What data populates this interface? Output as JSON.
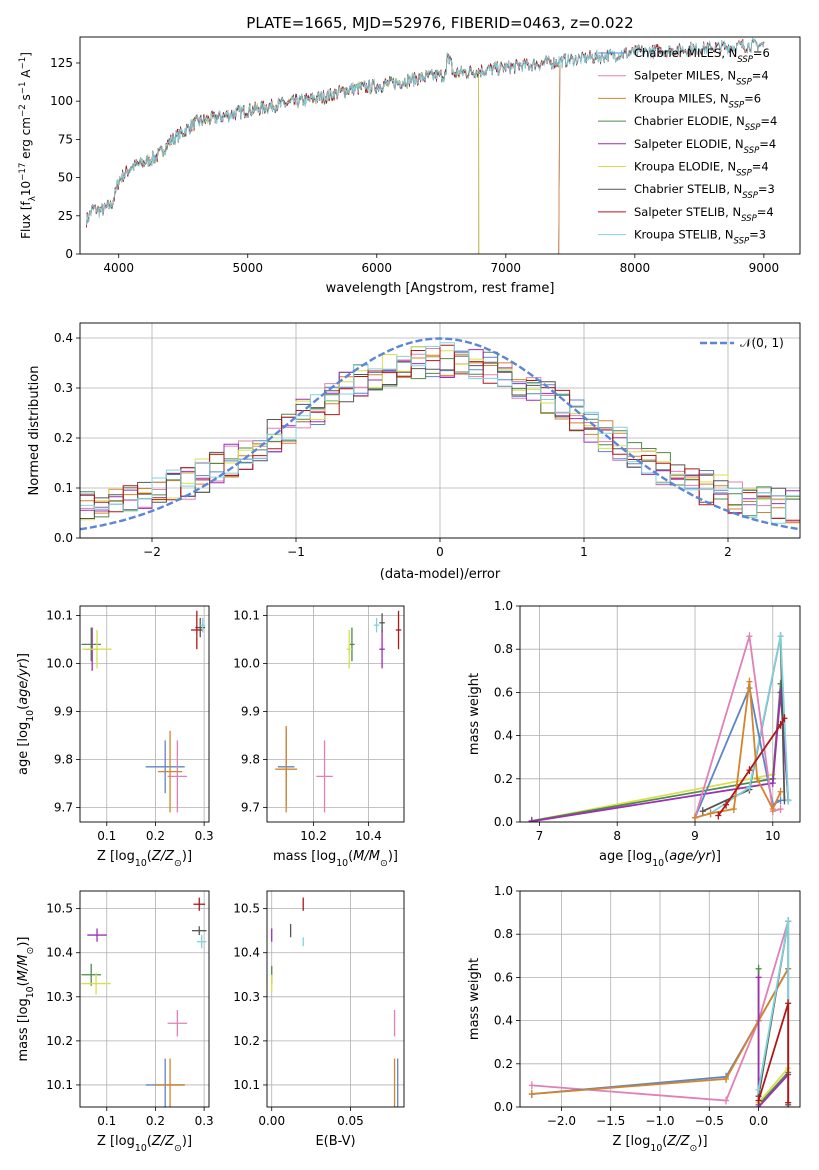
{
  "figure": {
    "title": "PLATE=1665, MJD=52976, FIBERID=0463, z=0.022"
  },
  "colors": {
    "Chabrier MILES": "#5b86c8",
    "Salpeter MILES": "#e080b6",
    "Kroupa MILES": "#d4842c",
    "Chabrier ELODIE": "#4d8a4d",
    "Salpeter ELODIE": "#9b2fb5",
    "Kroupa ELODIE": "#d7e04a",
    "Chabrier STELIB": "#555555",
    "Salpeter STELIB": "#b01818",
    "Kroupa STELIB": "#82d2dc",
    "gaussian": "#5b86d8",
    "grid": "#b0b0b0"
  },
  "chart_data": [
    {
      "id": "spectrum",
      "type": "line",
      "xlabel": "wavelength [Angstrom, rest frame]",
      "ylabel": "Flux [f_λ 10^{-17} erg cm^{-2} s^{-1} A^{-1}]",
      "xlim": [
        3700,
        9280
      ],
      "ylim": [
        0,
        142
      ],
      "xticks": [
        "4000",
        "5000",
        "6000",
        "7000",
        "8000",
        "9000"
      ],
      "yticks": [
        "0",
        "25",
        "50",
        "75",
        "100",
        "125"
      ],
      "grid": false,
      "legend_position": "top-right",
      "series": [
        {
          "name": "Chabrier MILES, N_SSP=6",
          "legend_main": "Chabrier MILES, N",
          "legend_sub": "SSP",
          "legend_tail": "=6",
          "color_key": "Chabrier MILES",
          "range": [
            3750,
            7420
          ],
          "drop_at": 7410
        },
        {
          "name": "Salpeter MILES, N_SSP=4",
          "legend_main": "Salpeter MILES, N",
          "legend_sub": "SSP",
          "legend_tail": "=4",
          "color_key": "Salpeter MILES",
          "range": [
            3750,
            7420
          ],
          "drop_at": 7410
        },
        {
          "name": "Kroupa MILES, N_SSP=6",
          "legend_main": "Kroupa MILES, N",
          "legend_sub": "SSP",
          "legend_tail": "=6",
          "color_key": "Kroupa MILES",
          "range": [
            3750,
            7420
          ],
          "drop_at": 7410
        },
        {
          "name": "Chabrier ELODIE, N_SSP=4",
          "legend_main": "Chabrier ELODIE, N",
          "legend_sub": "SSP",
          "legend_tail": "=4",
          "color_key": "Chabrier ELODIE",
          "range": [
            3900,
            6790
          ],
          "drop_at": 6790
        },
        {
          "name": "Salpeter ELODIE, N_SSP=4",
          "legend_main": "Salpeter ELODIE, N",
          "legend_sub": "SSP",
          "legend_tail": "=4",
          "color_key": "Salpeter ELODIE",
          "range": [
            3900,
            6790
          ],
          "drop_at": 6790
        },
        {
          "name": "Kroupa ELODIE, N_SSP=4",
          "legend_main": "Kroupa ELODIE, N",
          "legend_sub": "SSP",
          "legend_tail": "=4",
          "color_key": "Kroupa ELODIE",
          "range": [
            3900,
            6790
          ],
          "drop_at": 6790
        },
        {
          "name": "Chabrier STELIB, N_SSP=3",
          "legend_main": "Chabrier STELIB, N",
          "legend_sub": "SSP",
          "legend_tail": "=3",
          "color_key": "Chabrier STELIB",
          "range": [
            3750,
            9000
          ]
        },
        {
          "name": "Salpeter STELIB, N_SSP=4",
          "legend_main": "Salpeter STELIB, N",
          "legend_sub": "SSP",
          "legend_tail": "=4",
          "color_key": "Salpeter STELIB",
          "range": [
            3750,
            9000
          ]
        },
        {
          "name": "Kroupa STELIB, N_SSP=3",
          "legend_main": "Kroupa STELIB, N",
          "legend_sub": "SSP",
          "legend_tail": "=3",
          "color_key": "Kroupa STELIB",
          "range": [
            3750,
            9000
          ]
        }
      ],
      "continuum_x": [
        3750,
        3800,
        3850,
        3900,
        3950,
        4000,
        4100,
        4200,
        4300,
        4400,
        4500,
        4600,
        4800,
        5000,
        5200,
        5400,
        5600,
        5800,
        6000,
        6200,
        6400,
        6600,
        6800,
        7000,
        7200,
        7400,
        7600,
        7800,
        8000,
        8200,
        8400,
        8600,
        8800,
        9000
      ],
      "continuum_y": [
        22,
        30,
        28,
        30,
        33,
        48,
        57,
        60,
        64,
        74,
        80,
        86,
        90,
        94,
        97,
        100,
        103,
        108,
        110,
        113,
        116,
        118,
        120,
        122,
        124,
        126,
        128,
        130,
        132,
        133,
        134,
        135,
        136,
        137
      ]
    },
    {
      "id": "residual-histogram",
      "type": "bar",
      "xlabel": "(data-model)/error",
      "ylabel": "Normed distribution",
      "xlim": [
        -2.5,
        2.5
      ],
      "ylim": [
        0,
        0.43
      ],
      "xticks": [
        "−2",
        "−1",
        "0",
        "1",
        "2"
      ],
      "yticks": [
        "0.0",
        "0.1",
        "0.2",
        "0.3",
        "0.4"
      ],
      "grid": true,
      "legend_position": "top-right",
      "legend_label": "𝒩(0, 1)",
      "bin_width": 0.1,
      "gaussian": {
        "mu": 0,
        "sigma": 1
      }
    },
    {
      "id": "age-vs-Z",
      "type": "scatter",
      "xlabel": "Z [log10(Z/Z⊙)]",
      "ylabel": "age [log10(age/yr)]",
      "xlim": [
        0.045,
        0.31
      ],
      "ylim": [
        9.67,
        10.12
      ],
      "xticks": [
        "0.1",
        "0.2",
        "0.3"
      ],
      "yticks": [
        "9.7",
        "9.8",
        "9.9",
        "10.0",
        "10.1"
      ],
      "grid": true,
      "points": [
        {
          "key": "Chabrier MILES",
          "x": 0.22,
          "y": 9.785,
          "xerr": 0.04,
          "yerr": 0.055
        },
        {
          "key": "Salpeter MILES",
          "x": 0.245,
          "y": 9.765,
          "xerr": 0.02,
          "yerr": 0.075
        },
        {
          "key": "Kroupa MILES",
          "x": 0.23,
          "y": 9.775,
          "xerr": 0.025,
          "yerr": 0.085
        },
        {
          "key": "Chabrier ELODIE",
          "x": 0.068,
          "y": 10.04,
          "xerr": 0.02,
          "yerr": 0.035
        },
        {
          "key": "Salpeter ELODIE",
          "x": 0.07,
          "y": 10.03,
          "xerr": 0.012,
          "yerr": 0.045
        },
        {
          "key": "Kroupa ELODIE",
          "x": 0.08,
          "y": 10.03,
          "xerr": 0.03,
          "yerr": 0.04
        },
        {
          "key": "Chabrier STELIB",
          "x": 0.292,
          "y": 10.075,
          "xerr": 0.01,
          "yerr": 0.02
        },
        {
          "key": "Salpeter STELIB",
          "x": 0.285,
          "y": 10.07,
          "xerr": 0.012,
          "yerr": 0.04
        },
        {
          "key": "Kroupa STELIB",
          "x": 0.297,
          "y": 10.08,
          "xerr": 0.005,
          "yerr": 0.015
        }
      ]
    },
    {
      "id": "age-vs-mass",
      "type": "scatter",
      "xlabel": "mass [log10(M/M⊙)]",
      "ylabel": "",
      "xlim": [
        10.03,
        10.53
      ],
      "ylim": [
        9.67,
        10.12
      ],
      "xticks": [
        "10.2",
        "10.4"
      ],
      "yticks": [
        "9.7",
        "9.8",
        "9.9",
        "10.0",
        "10.1"
      ],
      "grid": true,
      "points": [
        {
          "key": "Chabrier MILES",
          "x": 10.1,
          "y": 9.785,
          "xerr": 0.03,
          "yerr": 0.08
        },
        {
          "key": "Salpeter MILES",
          "x": 10.24,
          "y": 9.765,
          "xerr": 0.03,
          "yerr": 0.075
        },
        {
          "key": "Kroupa MILES",
          "x": 10.1,
          "y": 9.78,
          "xerr": 0.04,
          "yerr": 0.09
        },
        {
          "key": "Chabrier ELODIE",
          "x": 10.34,
          "y": 10.04,
          "xerr": 0.01,
          "yerr": 0.035
        },
        {
          "key": "Salpeter ELODIE",
          "x": 10.45,
          "y": 10.03,
          "xerr": 0.01,
          "yerr": 0.04
        },
        {
          "key": "Kroupa ELODIE",
          "x": 10.33,
          "y": 10.03,
          "xerr": 0.01,
          "yerr": 0.04
        },
        {
          "key": "Chabrier STELIB",
          "x": 10.45,
          "y": 10.085,
          "xerr": 0.01,
          "yerr": 0.02
        },
        {
          "key": "Salpeter STELIB",
          "x": 10.51,
          "y": 10.07,
          "xerr": 0.01,
          "yerr": 0.04
        },
        {
          "key": "Kroupa STELIB",
          "x": 10.43,
          "y": 10.08,
          "xerr": 0.01,
          "yerr": 0.015
        }
      ]
    },
    {
      "id": "weight-vs-age",
      "type": "line",
      "xlabel": "age [log10(age/yr)]",
      "ylabel": "mass weight",
      "xlim": [
        6.75,
        10.35
      ],
      "ylim": [
        0,
        1.0
      ],
      "xticks": [
        "7",
        "8",
        "9",
        "10"
      ],
      "yticks": [
        "0.0",
        "0.2",
        "0.4",
        "0.6",
        "0.8",
        "1.0"
      ],
      "grid": true,
      "series": [
        {
          "key": "Kroupa ELODIE",
          "x": [
            6.9,
            10.0,
            10.1,
            10.2
          ],
          "y": [
            0.005,
            0.22,
            0.6,
            0.1
          ]
        },
        {
          "key": "Chabrier ELODIE",
          "x": [
            6.9,
            10.0,
            10.1,
            10.2
          ],
          "y": [
            0.005,
            0.2,
            0.64,
            0.1
          ]
        },
        {
          "key": "Salpeter ELODIE",
          "x": [
            6.9,
            10.0,
            10.1,
            10.2
          ],
          "y": [
            0.003,
            0.18,
            0.6,
            0.1
          ]
        },
        {
          "key": "Chabrier STELIB",
          "x": [
            9.1,
            9.7,
            10.1,
            10.15
          ],
          "y": [
            0.05,
            0.15,
            0.86,
            0.1
          ]
        },
        {
          "key": "Kroupa STELIB",
          "x": [
            9.2,
            9.7,
            10.1,
            10.2
          ],
          "y": [
            0.04,
            0.16,
            0.86,
            0.1
          ]
        },
        {
          "key": "Chabrier MILES",
          "x": [
            9.0,
            9.7,
            10.0,
            10.1
          ],
          "y": [
            0.02,
            0.62,
            0.08,
            0.1
          ]
        },
        {
          "key": "Salpeter MILES",
          "x": [
            9.0,
            9.7,
            10.0,
            10.1
          ],
          "y": [
            0.02,
            0.86,
            0.05,
            0.06
          ]
        },
        {
          "key": "Kroupa MILES",
          "x": [
            9.0,
            9.2,
            9.5,
            9.7,
            9.8,
            10.0,
            10.1
          ],
          "y": [
            0.02,
            0.04,
            0.06,
            0.65,
            0.2,
            0.06,
            0.14
          ]
        },
        {
          "key": "Salpeter STELIB",
          "x": [
            9.3,
            9.4,
            9.7,
            10.1,
            10.15
          ],
          "y": [
            0.03,
            0.08,
            0.24,
            0.45,
            0.48
          ]
        }
      ]
    },
    {
      "id": "mass-vs-Z",
      "type": "scatter",
      "xlabel": "Z [log10(Z/Z⊙)]",
      "ylabel": "mass [log10(M/M⊙)]",
      "xlim": [
        0.045,
        0.31
      ],
      "ylim": [
        10.05,
        10.54
      ],
      "xticks": [
        "0.1",
        "0.2",
        "0.3"
      ],
      "yticks": [
        "10.1",
        "10.2",
        "10.3",
        "10.4",
        "10.5"
      ],
      "grid": true,
      "points": [
        {
          "key": "Chabrier MILES",
          "x": 0.22,
          "y": 10.1,
          "xerr": 0.04,
          "yerr": 0.06
        },
        {
          "key": "Salpeter MILES",
          "x": 0.245,
          "y": 10.24,
          "xerr": 0.02,
          "yerr": 0.03
        },
        {
          "key": "Kroupa MILES",
          "x": 0.23,
          "y": 10.1,
          "xerr": 0.03,
          "yerr": 0.06
        },
        {
          "key": "Chabrier ELODIE",
          "x": 0.068,
          "y": 10.35,
          "xerr": 0.02,
          "yerr": 0.025
        },
        {
          "key": "Salpeter ELODIE",
          "x": 0.08,
          "y": 10.44,
          "xerr": 0.02,
          "yerr": 0.015
        },
        {
          "key": "Kroupa ELODIE",
          "x": 0.078,
          "y": 10.33,
          "xerr": 0.03,
          "yerr": 0.025
        },
        {
          "key": "Chabrier STELIB",
          "x": 0.29,
          "y": 10.45,
          "xerr": 0.015,
          "yerr": 0.01
        },
        {
          "key": "Salpeter STELIB",
          "x": 0.29,
          "y": 10.51,
          "xerr": 0.012,
          "yerr": 0.015
        },
        {
          "key": "Kroupa STELIB",
          "x": 0.295,
          "y": 10.425,
          "xerr": 0.01,
          "yerr": 0.015
        }
      ]
    },
    {
      "id": "mass-vs-ebv",
      "type": "scatter",
      "xlabel": "E(B-V)",
      "ylabel": "",
      "xlim": [
        -0.003,
        0.084
      ],
      "ylim": [
        10.05,
        10.54
      ],
      "xticks": [
        "0.00",
        "0.05"
      ],
      "yticks": [
        "10.1",
        "10.2",
        "10.3",
        "10.4",
        "10.5"
      ],
      "grid": true,
      "points": [
        {
          "key": "Chabrier MILES",
          "x": 0.08,
          "y": 10.1,
          "xerr": 0,
          "yerr": 0.06
        },
        {
          "key": "Salpeter MILES",
          "x": 0.078,
          "y": 10.24,
          "xerr": 0,
          "yerr": 0.03
        },
        {
          "key": "Kroupa MILES",
          "x": 0.078,
          "y": 10.1,
          "xerr": 0,
          "yerr": 0.06
        },
        {
          "key": "Chabrier ELODIE",
          "x": 0.0,
          "y": 10.35,
          "xerr": 0,
          "yerr": 0.02
        },
        {
          "key": "Salpeter ELODIE",
          "x": 0.0,
          "y": 10.44,
          "xerr": 0,
          "yerr": 0.015
        },
        {
          "key": "Kroupa ELODIE",
          "x": 0.0,
          "y": 10.33,
          "xerr": 0,
          "yerr": 0.02
        },
        {
          "key": "Chabrier STELIB",
          "x": 0.012,
          "y": 10.45,
          "xerr": 0,
          "yerr": 0.015
        },
        {
          "key": "Salpeter STELIB",
          "x": 0.02,
          "y": 10.51,
          "xerr": 0,
          "yerr": 0.015
        },
        {
          "key": "Kroupa STELIB",
          "x": 0.02,
          "y": 10.425,
          "xerr": 0,
          "yerr": 0.01
        }
      ]
    },
    {
      "id": "weight-vs-Z",
      "type": "line",
      "xlabel": "Z [log10(Z/Z⊙)]",
      "ylabel": "mass weight",
      "xlim": [
        -2.42,
        0.42
      ],
      "ylim": [
        0,
        1.0
      ],
      "xticks": [
        "−2.0",
        "−1.5",
        "−1.0",
        "−0.5",
        "0.0"
      ],
      "yticks": [
        "0.0",
        "0.2",
        "0.4",
        "0.6",
        "0.8",
        "1.0"
      ],
      "grid": true,
      "series": [
        {
          "key": "Salpeter MILES",
          "x": [
            -2.3,
            -0.33,
            0.0,
            0.3
          ],
          "y": [
            0.1,
            0.03,
            0.4,
            0.86
          ]
        },
        {
          "key": "Chabrier MILES",
          "x": [
            -2.3,
            -0.33,
            0.0,
            0.3
          ],
          "y": [
            0.06,
            0.14,
            0.4,
            0.64
          ]
        },
        {
          "key": "Kroupa MILES",
          "x": [
            -2.3,
            -0.33,
            0.0,
            0.3
          ],
          "y": [
            0.06,
            0.13,
            0.4,
            0.64
          ]
        },
        {
          "key": "Chabrier ELODIE",
          "x": [
            0.0,
            0.0,
            0.3
          ],
          "y": [
            0.64,
            0.01,
            0.16
          ]
        },
        {
          "key": "Kroupa ELODIE",
          "x": [
            0.0,
            0.0,
            0.3
          ],
          "y": [
            0.6,
            0.02,
            0.18
          ]
        },
        {
          "key": "Salpeter ELODIE",
          "x": [
            0.0,
            0.0,
            0.3
          ],
          "y": [
            0.6,
            0.0,
            0.15
          ]
        },
        {
          "key": "Chabrier STELIB",
          "x": [
            0.0,
            0.3,
            0.3
          ],
          "y": [
            0.05,
            0.86,
            0.01
          ]
        },
        {
          "key": "Kroupa STELIB",
          "x": [
            0.0,
            0.3,
            0.3
          ],
          "y": [
            0.08,
            0.86,
            0.02
          ]
        },
        {
          "key": "Salpeter STELIB",
          "x": [
            0.0,
            0.3,
            0.3
          ],
          "y": [
            0.03,
            0.48,
            0.02
          ]
        }
      ]
    }
  ]
}
